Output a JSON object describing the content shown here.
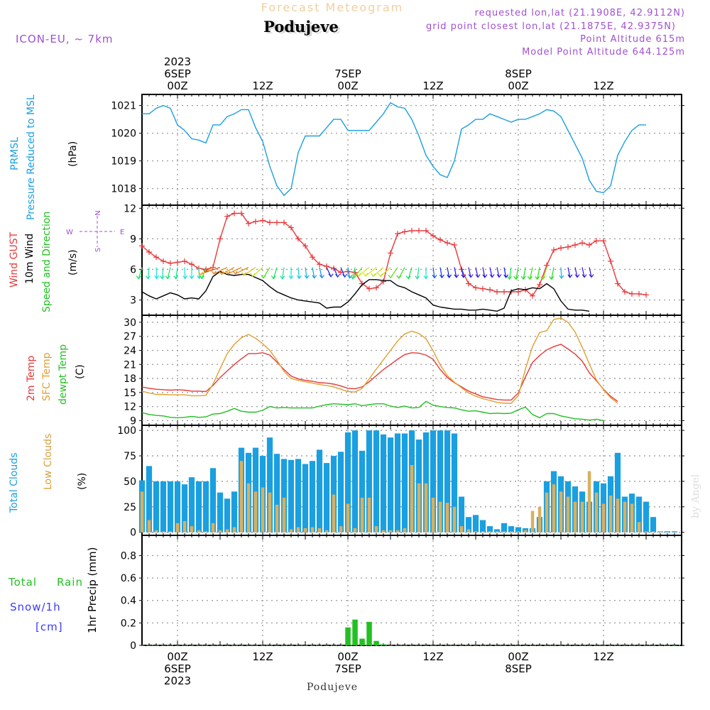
{
  "header": {
    "title_top": "Forecast Meteogram",
    "location": "Podujeve",
    "model": "ICON-EU, ~ 7km",
    "requested": "requested lon,lat (21.1908E, 42.9112N)",
    "gridpoint": "grid point closest lon,lat (21.1875E, 42.9375N)",
    "point_alt": "Point Altitude 615m",
    "model_alt": "Model Point Altitude 644.125m",
    "footer_location": "Podujeve",
    "watermark": "by Angel"
  },
  "time_axis": {
    "top_labels": [
      {
        "hour": 0,
        "lines": [
          "2023",
          "6SEP",
          "00Z"
        ]
      },
      {
        "hour": 12,
        "lines": [
          "12Z"
        ]
      },
      {
        "hour": 24,
        "lines": [
          "7SEP",
          "00Z"
        ]
      },
      {
        "hour": 36,
        "lines": [
          "12Z"
        ]
      },
      {
        "hour": 48,
        "lines": [
          "8SEP",
          "00Z"
        ]
      },
      {
        "hour": 60,
        "lines": [
          "12Z"
        ]
      }
    ],
    "bottom_labels": [
      {
        "hour": 0,
        "lines": [
          "00Z",
          "6SEP",
          "2023"
        ]
      },
      {
        "hour": 12,
        "lines": [
          "12Z"
        ]
      },
      {
        "hour": 24,
        "lines": [
          "00Z",
          "7SEP"
        ]
      },
      {
        "hour": 36,
        "lines": [
          "12Z"
        ]
      },
      {
        "hour": 48,
        "lines": [
          "00Z",
          "8SEP"
        ]
      },
      {
        "hour": 60,
        "lines": [
          "12Z"
        ]
      }
    ]
  },
  "colors": {
    "pressure": "#1a9fe0",
    "gust": "#e8383a",
    "wind": "#000000",
    "temp": "#e8383a",
    "sfc": "#e0a030",
    "dew": "#22c022",
    "total_clouds": "#1a9fe0",
    "low_clouds": "#d8b060",
    "rain": "#22c022",
    "snow": "#3a3aff",
    "meta": "#a050d0"
  },
  "panels": {
    "pressure": {
      "label1": "PRMSL",
      "label2": "Pressure Reduced to MSL",
      "unit": "(hPa)"
    },
    "wind": {
      "label1": "Wind GUST",
      "label2": "10m Wind",
      "label3": "Speed and Direction",
      "unit": "(m/s)",
      "compass_n": "N",
      "compass_s": "S",
      "compass_e": "E",
      "compass_w": "W"
    },
    "temp": {
      "label1": "2m Temp",
      "label2": "SFC Temp",
      "label3": "dewpt Temp",
      "unit": "(C)"
    },
    "clouds": {
      "label1": "Total Clouds",
      "label2": "Low Clouds",
      "unit": "(%)"
    },
    "precip": {
      "label1": "Total",
      "label1b": "Rain",
      "label2": "Snow/1h",
      "label3": "[cm]",
      "unit": "1hr Precip (mm)"
    }
  },
  "chart_data": [
    {
      "type": "line",
      "name": "PRMSL",
      "x_start_hour": -5,
      "x_step_hours": 1,
      "ylim": [
        1017.4,
        1021.4
      ],
      "yticks": [
        1018,
        1019,
        1020,
        1021
      ],
      "series": [
        {
          "name": "PRMSL",
          "values": [
            1020.7,
            1020.7,
            1020.9,
            1021.0,
            1020.9,
            1020.3,
            1020.1,
            1019.8,
            1019.75,
            1019.65,
            1020.3,
            1020.3,
            1020.6,
            1020.7,
            1020.85,
            1020.85,
            1020.2,
            1019.7,
            1018.8,
            1018.1,
            1017.75,
            1018.0,
            1019.3,
            1019.9,
            1019.9,
            1019.9,
            1020.2,
            1020.5,
            1020.5,
            1020.1,
            1020.1,
            1020.1,
            1020.1,
            1020.4,
            1020.7,
            1021.1,
            1020.95,
            1020.9,
            1020.5,
            1019.9,
            1019.2,
            1018.8,
            1018.5,
            1018.4,
            1019.0,
            1020.15,
            1020.3,
            1020.5,
            1020.5,
            1020.7,
            1020.6,
            1020.5,
            1020.4,
            1020.5,
            1020.5,
            1020.6,
            1020.7,
            1020.85,
            1020.8,
            1020.6,
            1020.1,
            1019.6,
            1019.1,
            1018.3,
            1017.9,
            1017.85,
            1018.1,
            1019.2,
            1019.7,
            1020.1,
            1020.3,
            1020.3
          ]
        }
      ]
    },
    {
      "type": "line",
      "name": "Wind",
      "x_start_hour": -5,
      "x_step_hours": 1,
      "ylim": [
        1.5,
        12.3
      ],
      "yticks": [
        3,
        6,
        9,
        12
      ],
      "series": [
        {
          "name": "Wind GUST",
          "values": [
            8.3,
            7.7,
            7.2,
            6.8,
            6.6,
            6.7,
            6.8,
            6.5,
            6.1,
            6.0,
            6.2,
            9.0,
            11.2,
            11.5,
            11.5,
            10.5,
            10.7,
            10.8,
            10.6,
            10.6,
            10.6,
            10.1,
            9.0,
            8.3,
            7.2,
            6.5,
            6.3,
            6.1,
            5.7,
            5.8,
            5.7,
            4.6,
            4.1,
            4.2,
            4.8,
            7.6,
            9.5,
            9.7,
            9.8,
            9.8,
            9.8,
            9.3,
            8.9,
            8.6,
            8.4,
            6.0,
            4.6,
            4.2,
            4.1,
            4.0,
            3.8,
            3.8,
            3.8,
            3.8,
            4.0,
            3.4,
            4.5,
            6.4,
            7.9,
            8.1,
            8.2,
            8.4,
            8.6,
            8.4,
            8.8,
            8.8,
            6.8,
            4.6,
            3.8,
            3.6,
            3.6,
            3.5
          ]
        },
        {
          "name": "10m Wind",
          "values": [
            3.8,
            3.4,
            3.1,
            3.4,
            3.7,
            3.5,
            3.1,
            3.2,
            3.1,
            3.9,
            5.3,
            5.8,
            5.5,
            5.4,
            5.5,
            5.5,
            5.2,
            4.9,
            4.3,
            3.8,
            3.5,
            3.2,
            3.0,
            2.9,
            2.8,
            2.7,
            2.2,
            2.3,
            2.3,
            2.8,
            3.6,
            4.5,
            5.0,
            5.0,
            4.9,
            4.9,
            4.4,
            4.2,
            3.8,
            3.5,
            3.2,
            2.5,
            2.3,
            2.2,
            2.1,
            2.1,
            2.0,
            2.0,
            2.1,
            2.0,
            1.9,
            2.2,
            3.9,
            4.1,
            4.0,
            4.2,
            4.1,
            4.6,
            4.1,
            2.9,
            2.1,
            2.0,
            2.0,
            1.9
          ]
        }
      ]
    },
    {
      "type": "line",
      "name": "Temperature",
      "x_start_hour": -5,
      "x_step_hours": 1,
      "ylim": [
        8.0,
        31.5
      ],
      "yticks": [
        9,
        12,
        15,
        18,
        21,
        24,
        27,
        30
      ],
      "series": [
        {
          "name": "2m Temp",
          "values": [
            16.2,
            15.9,
            15.7,
            15.6,
            15.5,
            15.6,
            15.5,
            15.3,
            15.3,
            15.2,
            16.5,
            18.2,
            19.6,
            21.0,
            22.2,
            23.3,
            23.3,
            23.5,
            23.0,
            21.5,
            19.9,
            18.5,
            17.9,
            17.6,
            17.4,
            17.1,
            17.0,
            16.8,
            16.4,
            15.9,
            15.8,
            16.2,
            17.3,
            18.6,
            19.9,
            21.0,
            22.1,
            23.1,
            23.5,
            23.4,
            23.0,
            22.1,
            19.9,
            18.2,
            17.1,
            16.2,
            15.3,
            14.7,
            14.1,
            13.8,
            13.5,
            13.4,
            13.4,
            14.9,
            18.3,
            21.4,
            22.9,
            24.1,
            24.8,
            25.3,
            24.3,
            23.2,
            21.7,
            19.2,
            17.5,
            15.7,
            14.2,
            13.1
          ]
        },
        {
          "name": "SFC Temp",
          "values": [
            15.3,
            14.9,
            14.6,
            14.6,
            14.5,
            14.5,
            14.5,
            14.3,
            14.3,
            14.4,
            16.8,
            20.1,
            23.3,
            25.3,
            26.7,
            27.4,
            26.6,
            25.4,
            24.0,
            21.9,
            19.5,
            18.0,
            17.6,
            17.3,
            17.0,
            16.7,
            16.5,
            16.2,
            15.7,
            15.2,
            15.1,
            15.9,
            17.9,
            20.0,
            22.0,
            24.0,
            26.0,
            27.5,
            28.1,
            27.6,
            26.5,
            23.9,
            20.9,
            18.6,
            17.2,
            16.0,
            14.9,
            14.2,
            13.7,
            13.3,
            12.9,
            12.7,
            12.7,
            14.3,
            20.0,
            24.8,
            27.8,
            28.2,
            30.6,
            30.9,
            30.0,
            27.9,
            24.7,
            21.1,
            17.7,
            15.6,
            13.9,
            12.7
          ]
        },
        {
          "name": "dewpt Temp",
          "values": [
            10.7,
            10.3,
            10.1,
            10.0,
            9.7,
            9.6,
            9.7,
            9.9,
            9.7,
            9.8,
            10.4,
            10.5,
            11.0,
            11.6,
            11.0,
            10.8,
            10.8,
            11.2,
            12.0,
            11.7,
            11.8,
            11.7,
            11.7,
            11.7,
            11.7,
            12.1,
            12.4,
            12.6,
            12.5,
            12.4,
            12.6,
            12.2,
            12.4,
            12.6,
            12.6,
            12.1,
            11.8,
            12.1,
            11.7,
            11.8,
            13.1,
            12.3,
            12.0,
            11.8,
            11.7,
            11.3,
            11.0,
            11.1,
            10.8,
            10.5,
            10.6,
            10.5,
            10.6,
            11.3,
            11.9,
            10.3,
            9.6,
            10.5,
            10.5,
            10.0,
            9.7,
            9.4,
            9.3,
            9.1,
            9.3,
            9.0
          ]
        }
      ]
    },
    {
      "type": "bar",
      "name": "Clouds",
      "x_start_hour": -5,
      "x_step_hours": 1,
      "ylim": [
        -3,
        105
      ],
      "yticks": [
        0,
        25,
        50,
        75,
        100
      ],
      "series": [
        {
          "name": "Total Clouds",
          "values": [
            51,
            65,
            50,
            50,
            50,
            50,
            47,
            54,
            50,
            50,
            63,
            39,
            33,
            40,
            83,
            78,
            83,
            75,
            93,
            77,
            72,
            71,
            72,
            67,
            70,
            81,
            68,
            75,
            79,
            98,
            100,
            80,
            100,
            100,
            96,
            93,
            97,
            97,
            100,
            91,
            98,
            100,
            100,
            100,
            97,
            35,
            15,
            17,
            12,
            6,
            3,
            9,
            6,
            5,
            4,
            4,
            15,
            50,
            60,
            55,
            50,
            45,
            40,
            30,
            50,
            48,
            55,
            78,
            35,
            38,
            35,
            30,
            15,
            1,
            1,
            1
          ]
        },
        {
          "name": "Low Clouds",
          "values": [
            40,
            12,
            2,
            1,
            1,
            9,
            11,
            6,
            2,
            1,
            9,
            2,
            3,
            5,
            70,
            48,
            40,
            44,
            39,
            27,
            34,
            3,
            5,
            4,
            5,
            4,
            2,
            37,
            6,
            28,
            4,
            34,
            34,
            6,
            2,
            2,
            2,
            4,
            66,
            48,
            48,
            34,
            30,
            29,
            25,
            6,
            3,
            1,
            1,
            1,
            1,
            1,
            1,
            1,
            2,
            21,
            25,
            39,
            47,
            40,
            35,
            30,
            30,
            60,
            39,
            28,
            36,
            33,
            30,
            28,
            10,
            1,
            1,
            1
          ]
        }
      ]
    },
    {
      "type": "bar",
      "name": "Precipitation",
      "x_start_hour": -5,
      "x_step_hours": 1,
      "ylim": [
        0,
        0.98
      ],
      "yticks": [
        0,
        0.2,
        0.4,
        0.6,
        0.8
      ],
      "series": [
        {
          "name": "Total Rain",
          "values": [
            0,
            0,
            0,
            0,
            0,
            0,
            0,
            0,
            0,
            0,
            0,
            0,
            0,
            0,
            0,
            0,
            0,
            0,
            0,
            0,
            0,
            0,
            0,
            0,
            0,
            0,
            0,
            0,
            0,
            0.16,
            0.23,
            0.06,
            0.21,
            0.04,
            0.01,
            0,
            0,
            0,
            0,
            0,
            0,
            0,
            0,
            0,
            0,
            0,
            0,
            0,
            0,
            0,
            0,
            0,
            0,
            0,
            0,
            0,
            0,
            0,
            0,
            0,
            0,
            0,
            0,
            0,
            0,
            0,
            0,
            0,
            0,
            0,
            0,
            0,
            0,
            0,
            0,
            0
          ]
        }
      ]
    }
  ]
}
